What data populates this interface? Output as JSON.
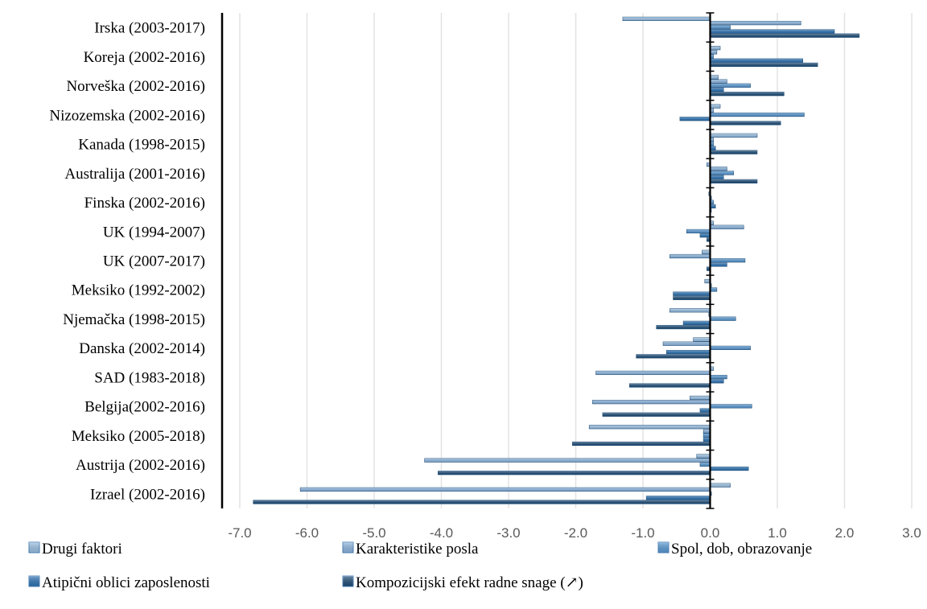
{
  "chart_data": {
    "type": "bar",
    "orientation": "horizontal",
    "title": "",
    "xlabel": "",
    "ylabel": "",
    "xlim": [
      -7.0,
      3.0
    ],
    "x_ticks": [
      "-7.0",
      "-6.0",
      "-5.0",
      "-4.0",
      "-3.0",
      "-2.0",
      "-1.0",
      "0.0",
      "1.0",
      "2.0",
      "3.0"
    ],
    "x_tick_values": [
      -7,
      -6,
      -5,
      -4,
      -3,
      -2,
      -1,
      0,
      1,
      2,
      3
    ],
    "grid": "vertical",
    "legend_position": "bottom",
    "categories": [
      "Irska (2003-2017)",
      "Koreja (2002-2016)",
      "Norveška (2002-2016)",
      "Nizozemska (2002-2016)",
      "Kanada (1998-2015)",
      "Australija (2001-2016)",
      "Finska (2002-2016)",
      "UK (1994-2007)",
      "UK (2007-2017)",
      "Meksiko (1992-2002)",
      "Njemačka (1998-2015)",
      "Danska (2002-2014)",
      "SAD (1983-2018)",
      "Belgija(2002-2016)",
      "Meksiko  (2005-2018)",
      "Austrija (2002-2016)",
      "Izrael (2002-2016)"
    ],
    "series": [
      {
        "name": "Drugi faktori",
        "color": "#9dc3e6",
        "values": [
          -1.3,
          0.15,
          0.12,
          0.15,
          0.7,
          -0.05,
          -0.02,
          0.05,
          -0.12,
          -0.08,
          -0.6,
          -0.25,
          0.05,
          -0.3,
          -1.8,
          -0.2,
          0.3
        ]
      },
      {
        "name": "Karakteristike posla",
        "color": "#8fb8e2",
        "values": [
          1.35,
          0.1,
          0.25,
          0.05,
          0.05,
          0.25,
          0.02,
          0.5,
          -0.6,
          0.02,
          -0.02,
          -0.7,
          -1.7,
          -1.75,
          -0.1,
          -4.25,
          -6.1
        ]
      },
      {
        "name": "Spol, dob, obrazovanje",
        "color": "#5b9bd5",
        "values": [
          0.3,
          0.05,
          0.6,
          1.4,
          0.05,
          0.35,
          0.05,
          -0.35,
          0.52,
          0.1,
          0.38,
          0.6,
          0.25,
          0.62,
          -0.1,
          -0.15,
          0.02
        ]
      },
      {
        "name": "Atipični oblici zaposlenosti",
        "color": "#2e75b6",
        "values": [
          1.85,
          1.38,
          0.2,
          -0.45,
          0.08,
          0.2,
          0.08,
          -0.15,
          0.25,
          -0.55,
          -0.4,
          -0.65,
          0.2,
          -0.15,
          -0.1,
          0.57,
          -0.95
        ]
      },
      {
        "name": "Kompozicijski efekt radne snage (↗)",
        "color": "#1f4e79",
        "values": [
          2.22,
          1.6,
          1.1,
          1.05,
          0.7,
          0.7,
          0.0,
          -0.05,
          -0.05,
          -0.55,
          -0.8,
          -1.1,
          -1.2,
          -1.6,
          -2.05,
          -4.05,
          -6.8
        ]
      }
    ]
  }
}
